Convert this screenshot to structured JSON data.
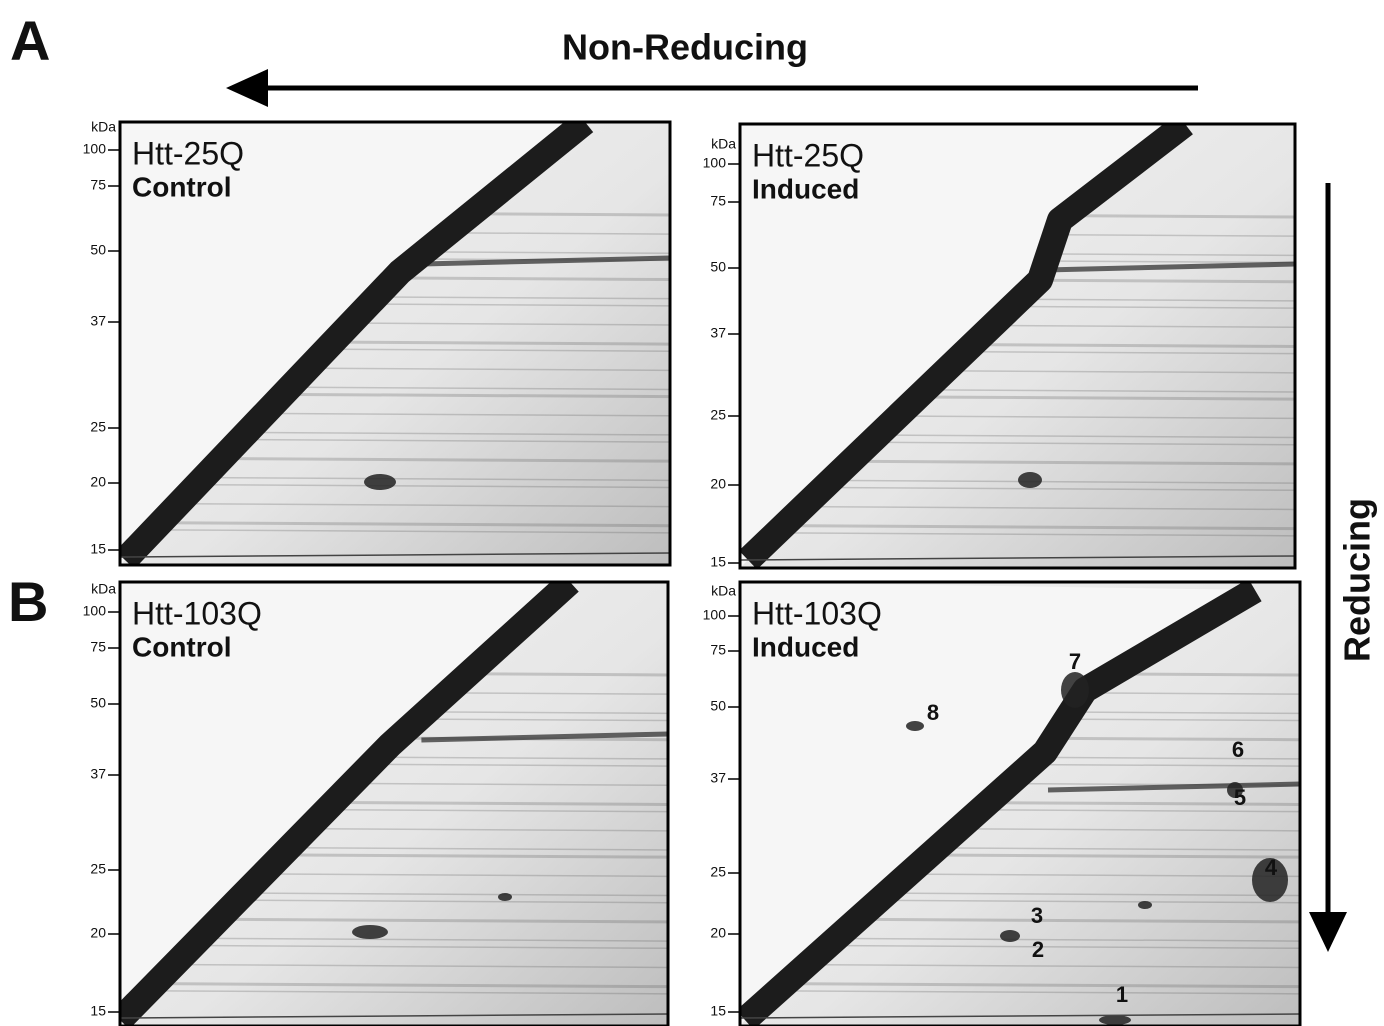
{
  "panel_labels": [
    "A",
    "B"
  ],
  "arrows": {
    "horizontal": "Non-Reducing",
    "vertical": "Reducing"
  },
  "gels": [
    {
      "title": "Htt-25Q",
      "condition": "Control",
      "unit": "kDa",
      "markers": [
        "100",
        "75",
        "50",
        "37",
        "25",
        "20",
        "15"
      ]
    },
    {
      "title": "Htt-25Q",
      "condition": "Induced",
      "unit": "kDa",
      "markers": [
        "100",
        "75",
        "50",
        "37",
        "25",
        "20",
        "15"
      ]
    },
    {
      "title": "Htt-103Q",
      "condition": "Control",
      "unit": "kDa",
      "markers": [
        "100",
        "75",
        "50",
        "37",
        "25",
        "20",
        "15"
      ]
    },
    {
      "title": "Htt-103Q",
      "condition": "Induced",
      "unit": "kDa",
      "markers": [
        "100",
        "75",
        "50",
        "37",
        "25",
        "20",
        "15"
      ],
      "spot_labels": [
        "1",
        "2",
        "3",
        "4",
        "5",
        "6",
        "7",
        "8"
      ]
    }
  ]
}
